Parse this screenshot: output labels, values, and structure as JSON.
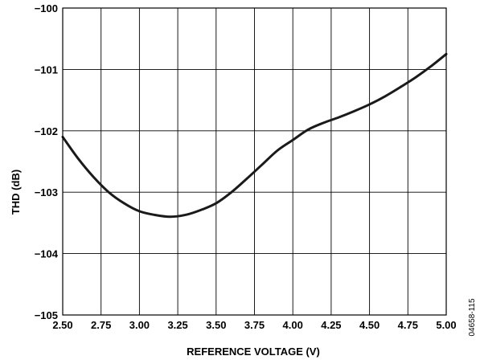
{
  "chart_data": {
    "type": "line",
    "title": "",
    "xlabel": "REFERENCE VOLTAGE (V)",
    "ylabel": "THD (dB)",
    "xlim": [
      2.5,
      5.0
    ],
    "ylim": [
      -105,
      -100
    ],
    "x_ticks": [
      "2.50",
      "2.75",
      "3.00",
      "3.25",
      "3.50",
      "3.75",
      "4.00",
      "4.25",
      "4.50",
      "4.75",
      "5.00"
    ],
    "y_ticks": [
      "−100",
      "−101",
      "−102",
      "−103",
      "−104",
      "−105"
    ],
    "grid": true,
    "legend": "none",
    "series": [
      {
        "color": "#1a1a1a",
        "x": [
          2.5,
          2.6,
          2.7,
          2.8,
          2.9,
          3.0,
          3.1,
          3.2,
          3.3,
          3.4,
          3.5,
          3.6,
          3.7,
          3.8,
          3.9,
          4.0,
          4.1,
          4.2,
          4.3,
          4.4,
          4.5,
          4.6,
          4.7,
          4.8,
          4.9,
          5.0
        ],
        "y": [
          -102.1,
          -102.45,
          -102.75,
          -103.0,
          -103.18,
          -103.31,
          -103.37,
          -103.4,
          -103.37,
          -103.29,
          -103.18,
          -103.0,
          -102.78,
          -102.55,
          -102.32,
          -102.15,
          -101.98,
          -101.87,
          -101.78,
          -101.68,
          -101.57,
          -101.44,
          -101.29,
          -101.13,
          -100.95,
          -100.75
        ]
      }
    ]
  },
  "figure_id": "04658-115"
}
